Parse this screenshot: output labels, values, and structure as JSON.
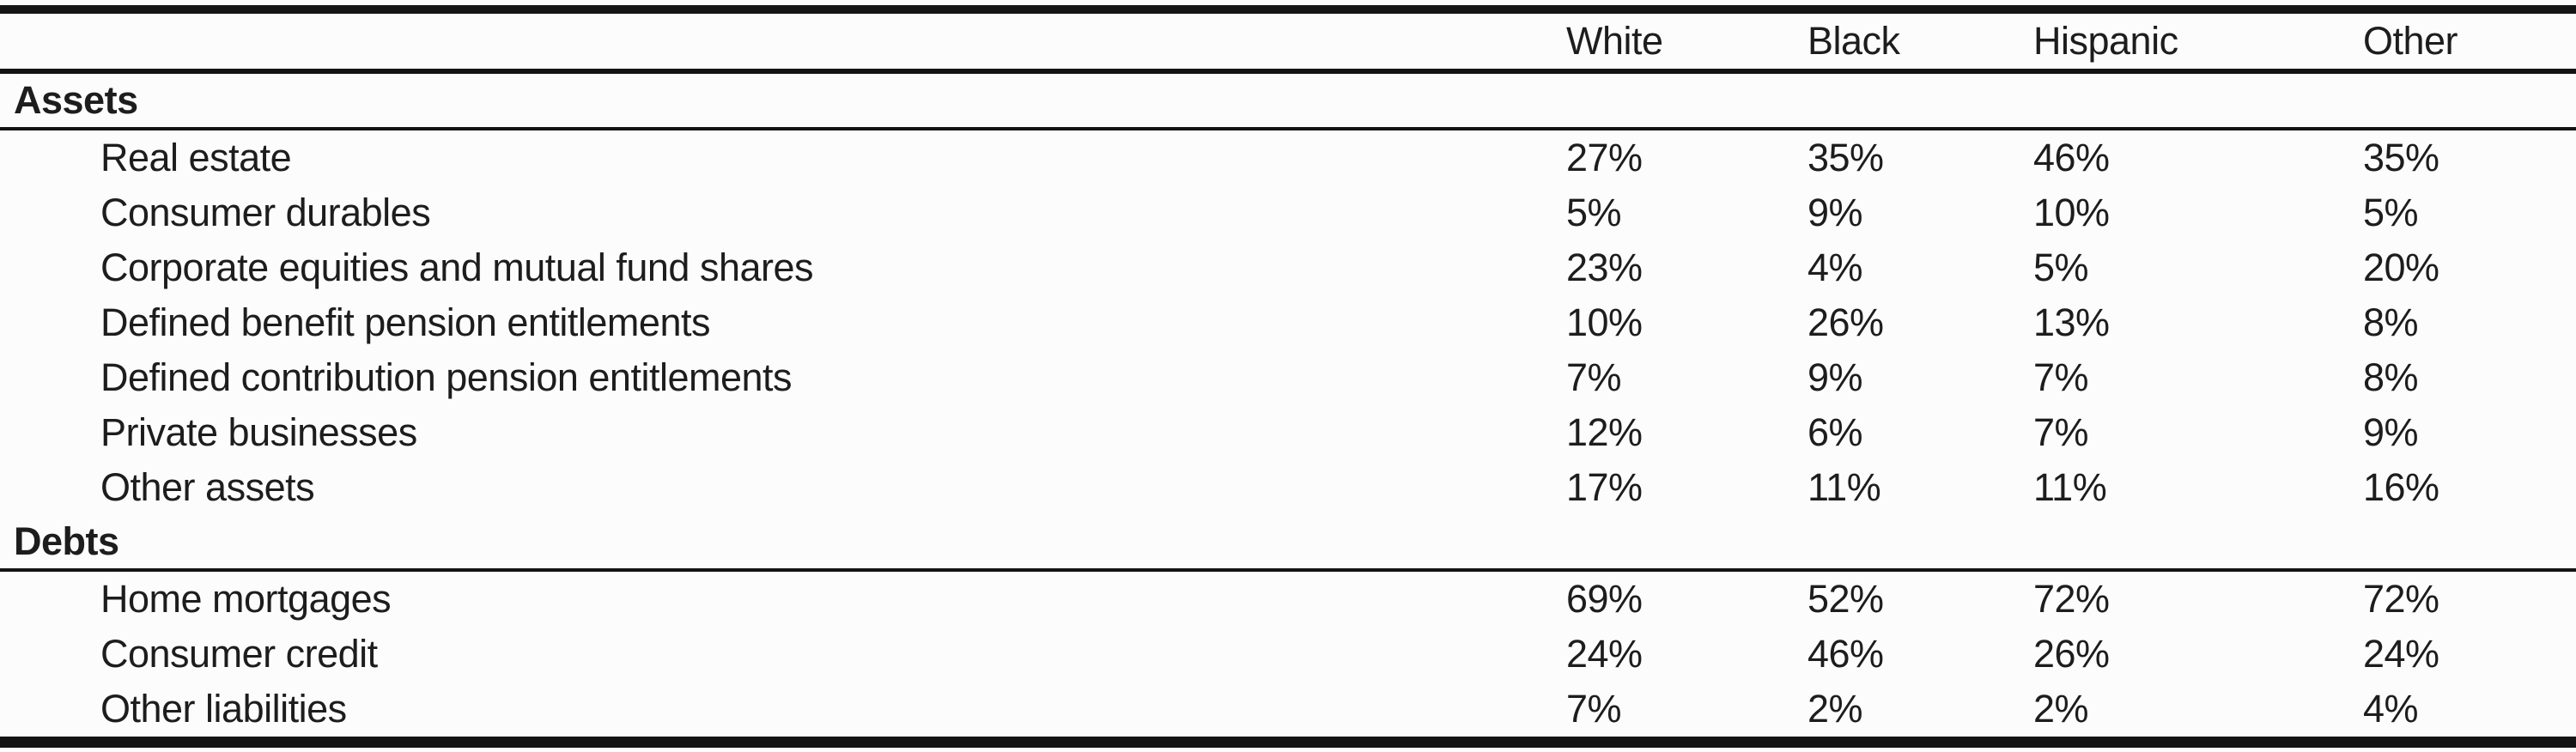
{
  "table": {
    "columns": [
      "White",
      "Black",
      "Hispanic",
      "Other"
    ],
    "sections": [
      {
        "label": "Assets",
        "rows": [
          {
            "label": "Real estate",
            "values": [
              "27%",
              "35%",
              "46%",
              "35%"
            ]
          },
          {
            "label": "Consumer durables",
            "values": [
              "5%",
              "9%",
              "10%",
              "5%"
            ]
          },
          {
            "label": "Corporate equities and mutual fund shares",
            "values": [
              "23%",
              "4%",
              "5%",
              "20%"
            ]
          },
          {
            "label": "Defined benefit pension entitlements",
            "values": [
              "10%",
              "26%",
              "13%",
              "8%"
            ]
          },
          {
            "label": "Defined contribution pension entitlements",
            "values": [
              "7%",
              "9%",
              "7%",
              "8%"
            ]
          },
          {
            "label": "Private businesses",
            "values": [
              "12%",
              "6%",
              "7%",
              "9%"
            ]
          },
          {
            "label": "Other assets",
            "values": [
              "17%",
              "11%",
              "11%",
              "16%"
            ]
          }
        ]
      },
      {
        "label": "Debts",
        "rows": [
          {
            "label": "Home mortgages",
            "values": [
              "69%",
              "52%",
              "72%",
              "72%"
            ]
          },
          {
            "label": "Consumer credit",
            "values": [
              "24%",
              "46%",
              "26%",
              "24%"
            ]
          },
          {
            "label": "Other liabilities",
            "values": [
              "7%",
              "2%",
              "2%",
              "4%"
            ]
          }
        ]
      }
    ]
  },
  "colors": {
    "text": "#1d1d1d",
    "rule": "#141414",
    "background": "#fcfcfc"
  }
}
